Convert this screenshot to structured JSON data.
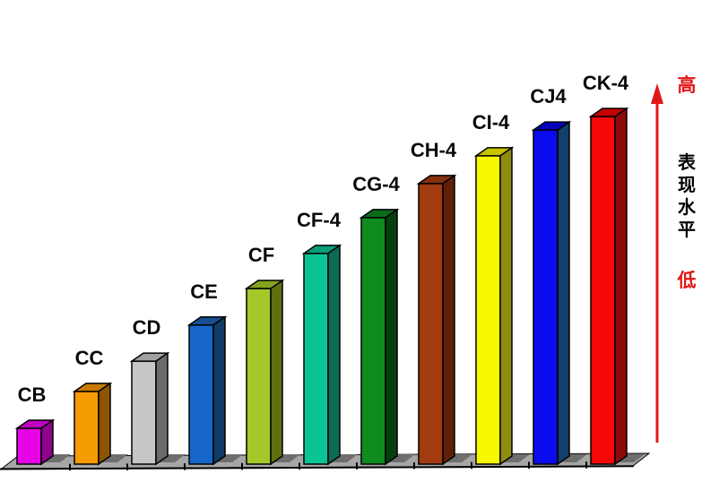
{
  "chart_data": {
    "type": "bar",
    "style": "3d-column",
    "title": "",
    "xlabel": "",
    "ylabel": "表现水平",
    "categories": [
      "CB",
      "CC",
      "CD",
      "CE",
      "CF",
      "CF-4",
      "CG-4",
      "CH-4",
      "CI-4",
      "CJ4",
      "CK-4"
    ],
    "values": [
      10.3,
      20.9,
      29.6,
      40.0,
      50.5,
      60.6,
      70.9,
      80.7,
      88.7,
      96.1,
      100
    ],
    "value_note": "relative performance level 0-100; no numeric axis shown, bars rise monotonically left to right",
    "bars": [
      {
        "label": "CB",
        "front": "#E603E6",
        "side": "#8E038E",
        "top": "#BF02BF"
      },
      {
        "label": "CC",
        "front": "#F59B04",
        "side": "#8B5502",
        "top": "#C87903"
      },
      {
        "label": "CD",
        "front": "#C6C6C6",
        "side": "#6B6B6B",
        "top": "#A0A0A0"
      },
      {
        "label": "CE",
        "front": "#1566C8",
        "side": "#123C66",
        "top": "#1A4E92"
      },
      {
        "label": "CF",
        "front": "#A3C82A",
        "side": "#5F7011",
        "top": "#84A31E"
      },
      {
        "label": "CF-4",
        "front": "#0BC495",
        "side": "#0D6B55",
        "top": "#0A9E78"
      },
      {
        "label": "CG-4",
        "front": "#0E8C1F",
        "side": "#06400E",
        "top": "#0B6B18"
      },
      {
        "label": "CH-4",
        "front": "#A23C10",
        "side": "#5E2008",
        "top": "#853110"
      },
      {
        "label": "CI-4",
        "front": "#F8F800",
        "side": "#8F8C10",
        "top": "#C8C400"
      },
      {
        "label": "CJ4",
        "front": "#0B0BF0",
        "side": "#123F6B",
        "top": "#0404BE"
      },
      {
        "label": "CK-4",
        "front": "#F50808",
        "side": "#8E0A0A",
        "top": "#C50202"
      }
    ],
    "floor_color": "#A6A6A6",
    "floor_shadow_color": "#6E6E6E",
    "label_color": "#0A0A0A",
    "legend": false,
    "grid": false
  },
  "annotation": {
    "axis_label": "表现水平",
    "high_label": "高",
    "low_label": "低",
    "arrow_direction": "up",
    "arrow_color": "#E01818",
    "high_low_color": "#E01818",
    "axis_label_color": "#000000"
  }
}
